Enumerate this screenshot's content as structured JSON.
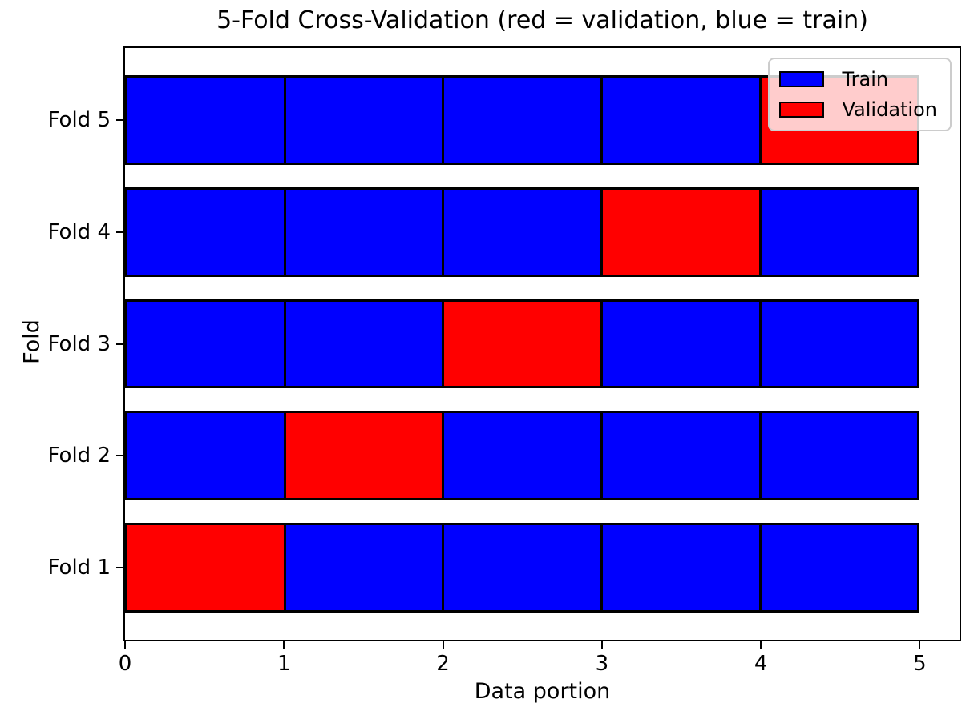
{
  "chart_data": {
    "type": "bar",
    "orientation": "horizontal",
    "title": "5-Fold Cross-Validation (red = validation, blue = train)",
    "xlabel": "Data portion",
    "ylabel": "Fold",
    "xlim": [
      0,
      5.25
    ],
    "ylim": [
      0.36,
      5.64
    ],
    "x_ticks": [
      0,
      1,
      2,
      3,
      4,
      5
    ],
    "bar_height": 0.8,
    "segment_width": 1,
    "n_segments": 5,
    "grid": false,
    "colors": {
      "train": "#0000ff",
      "validation": "#ff0000",
      "edge": "#000000"
    },
    "folds": [
      {
        "label": "Fold 1",
        "y": 1,
        "validation_segment": 0,
        "segments": [
          "validation",
          "train",
          "train",
          "train",
          "train"
        ]
      },
      {
        "label": "Fold 2",
        "y": 2,
        "validation_segment": 1,
        "segments": [
          "train",
          "validation",
          "train",
          "train",
          "train"
        ]
      },
      {
        "label": "Fold 3",
        "y": 3,
        "validation_segment": 2,
        "segments": [
          "train",
          "train",
          "validation",
          "train",
          "train"
        ]
      },
      {
        "label": "Fold 4",
        "y": 4,
        "validation_segment": 3,
        "segments": [
          "train",
          "train",
          "train",
          "validation",
          "train"
        ]
      },
      {
        "label": "Fold 5",
        "y": 5,
        "validation_segment": 4,
        "segments": [
          "train",
          "train",
          "train",
          "train",
          "validation"
        ]
      }
    ],
    "legend": {
      "position": "upper right",
      "entries": [
        {
          "label": "Train",
          "color": "#0000ff"
        },
        {
          "label": "Validation",
          "color": "#ff0000"
        }
      ]
    }
  }
}
